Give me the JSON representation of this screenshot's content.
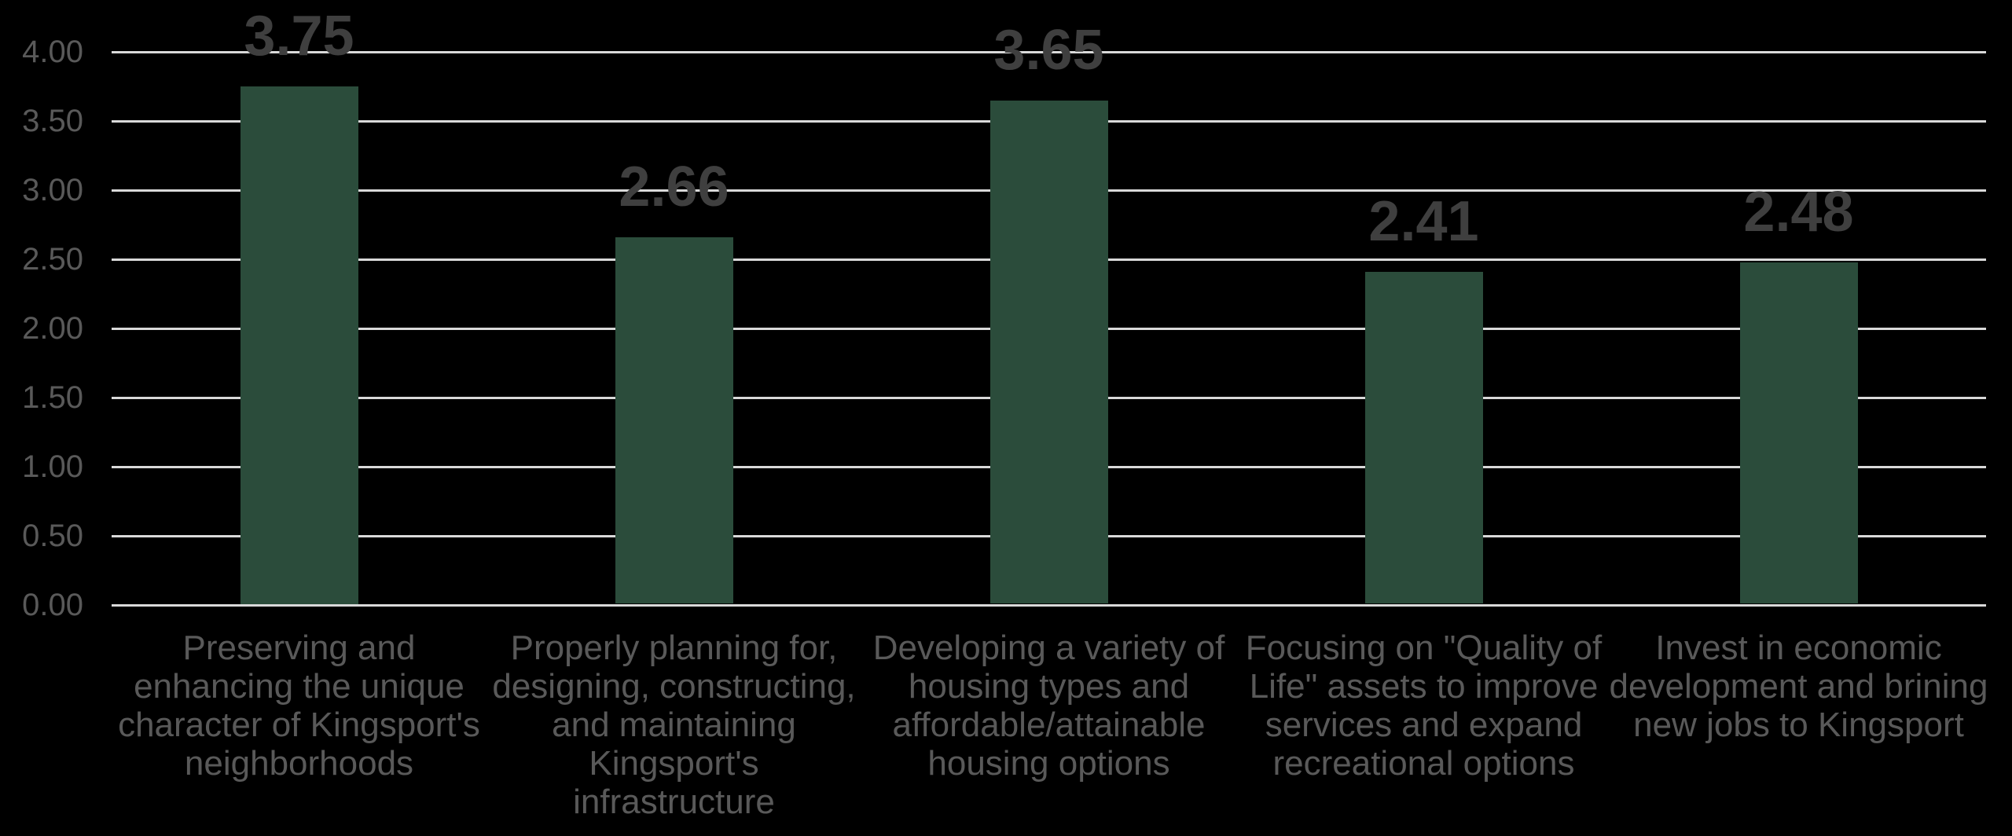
{
  "chart_data": {
    "type": "bar",
    "title": "",
    "xlabel": "",
    "ylabel": "",
    "categories": [
      "Preserving and\nenhancing the unique\ncharacter of Kingsport's\nneighborhoods",
      "Properly planning for,\ndesigning, constructing,\nand maintaining\nKingsport's\ninfrastructure",
      "Developing a variety of\nhousing types and\naffordable/attainable\nhousing options",
      "Focusing on \"Quality of\nLife\" assets to improve\nservices and expand\nrecreational options",
      "Invest in economic\ndevelopment and brining\nnew jobs to Kingsport"
    ],
    "values": [
      3.75,
      2.66,
      3.65,
      2.41,
      2.48
    ],
    "value_labels": [
      "3.75",
      "2.66",
      "3.65",
      "2.41",
      "2.48"
    ],
    "y_ticks": [
      "0.00",
      "0.50",
      "1.00",
      "1.50",
      "2.00",
      "2.50",
      "3.00",
      "3.50",
      "4.00"
    ],
    "ylim": [
      0,
      4
    ],
    "y_tick_step": 0.5,
    "grid": true,
    "legend": "none",
    "colors": {
      "background": "#000000",
      "bar_fill": "#2B4C3B",
      "gridline": "#D9D9D9",
      "tick_label": "#595959",
      "value_label": "#3F3F3F",
      "category_label": "#595959"
    }
  }
}
